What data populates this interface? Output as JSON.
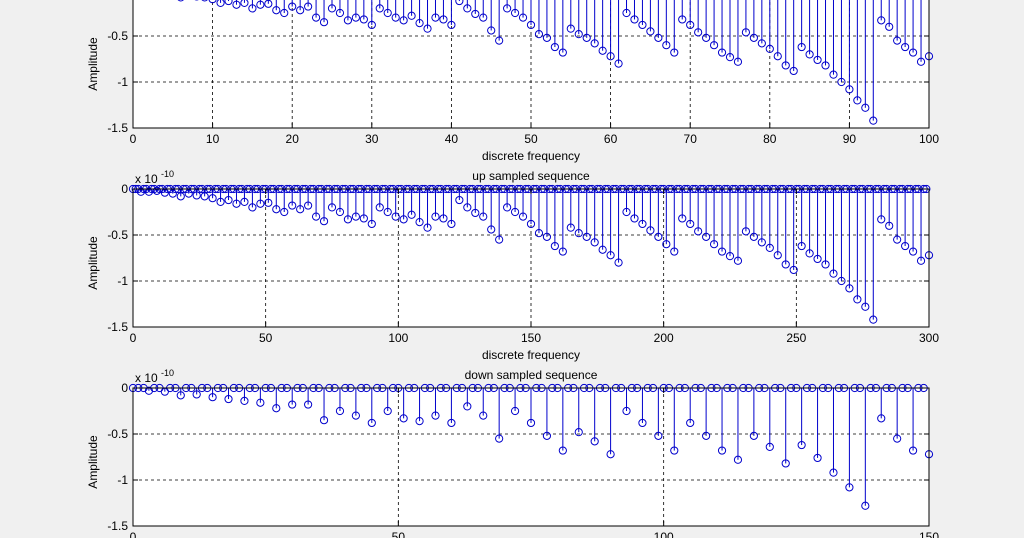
{
  "chart_data": [
    {
      "type": "stem",
      "title": "",
      "xlabel": "discrete frequency",
      "ylabel": "Amplitude",
      "exponent_label": "",
      "xlim": [
        0,
        100
      ],
      "ylim": [
        -1.5,
        0
      ],
      "xticks": [
        0,
        10,
        20,
        30,
        40,
        50,
        60,
        70,
        80,
        90,
        100
      ],
      "yticks": [
        -1.5,
        -1,
        -0.5
      ],
      "ytick_labels": [
        "-1.5",
        "-1",
        "-0.5"
      ],
      "grid": true,
      "marker_color": "#0000cc",
      "x": [
        0,
        1,
        2,
        3,
        4,
        5,
        6,
        7,
        8,
        9,
        10,
        11,
        12,
        13,
        14,
        15,
        16,
        17,
        18,
        19,
        20,
        21,
        22,
        23,
        24,
        25,
        26,
        27,
        28,
        29,
        30,
        31,
        32,
        33,
        34,
        35,
        36,
        37,
        38,
        39,
        40,
        41,
        42,
        43,
        44,
        45,
        46,
        47,
        48,
        49,
        50,
        51,
        52,
        53,
        54,
        55,
        56,
        57,
        58,
        59,
        60,
        61,
        62,
        63,
        64,
        65,
        66,
        67,
        68,
        69,
        70,
        71,
        72,
        73,
        74,
        75,
        76,
        77,
        78,
        79,
        80,
        81,
        82,
        83,
        84,
        85,
        86,
        87,
        88,
        89,
        90,
        91,
        92,
        93,
        94,
        95,
        96,
        97,
        98,
        99,
        100
      ],
      "y": [
        0,
        -0.03,
        -0.03,
        -0.02,
        -0.04,
        -0.05,
        -0.08,
        -0.05,
        -0.07,
        -0.08,
        -0.1,
        -0.14,
        -0.12,
        -0.16,
        -0.14,
        -0.2,
        -0.16,
        -0.15,
        -0.22,
        -0.25,
        -0.18,
        -0.22,
        -0.18,
        -0.3,
        -0.35,
        -0.2,
        -0.25,
        -0.33,
        -0.3,
        -0.32,
        -0.38,
        -0.2,
        -0.25,
        -0.3,
        -0.33,
        -0.28,
        -0.36,
        -0.42,
        -0.3,
        -0.32,
        -0.38,
        -0.12,
        -0.2,
        -0.26,
        -0.3,
        -0.44,
        -0.55,
        -0.2,
        -0.25,
        -0.3,
        -0.38,
        -0.48,
        -0.52,
        -0.62,
        -0.68,
        -0.42,
        -0.48,
        -0.52,
        -0.58,
        -0.66,
        -0.72,
        -0.8,
        -0.25,
        -0.32,
        -0.38,
        -0.45,
        -0.52,
        -0.6,
        -0.68,
        -0.32,
        -0.38,
        -0.46,
        -0.52,
        -0.6,
        -0.68,
        -0.73,
        -0.78,
        -0.46,
        -0.52,
        -0.58,
        -0.64,
        -0.72,
        -0.82,
        -0.88,
        -0.62,
        -0.7,
        -0.76,
        -0.82,
        -0.92,
        -1.0,
        -1.08,
        -1.2,
        -1.28,
        -1.42,
        -0.33,
        -0.4,
        -0.55,
        -0.62,
        -0.68,
        -0.78,
        -0.72
      ]
    },
    {
      "type": "stem",
      "title": "up sampled sequence",
      "xlabel": "discrete frequency",
      "ylabel": "Amplitude",
      "exponent_label": "x 10",
      "exponent_power": "-10",
      "xlim": [
        0,
        300
      ],
      "ylim": [
        -1.5,
        0
      ],
      "xticks": [
        0,
        50,
        100,
        150,
        200,
        250,
        300
      ],
      "yticks": [
        -1.5,
        -1,
        -0.5,
        0
      ],
      "ytick_labels": [
        "-1.5",
        "-1",
        "-0.5",
        "0"
      ],
      "grid": true,
      "marker_color": "#0000cc",
      "x": [],
      "y": []
    },
    {
      "type": "stem",
      "title": "down sampled sequence",
      "xlabel": "",
      "ylabel": "Amplitude",
      "exponent_label": "x 10",
      "exponent_power": "-10",
      "xlim": [
        0,
        150
      ],
      "ylim": [
        -1.5,
        0
      ],
      "xticks": [
        0,
        50,
        100,
        150
      ],
      "yticks": [
        -1.5,
        -1,
        -0.5,
        0
      ],
      "ytick_labels": [
        "-1.5",
        "-1",
        "-0.5",
        "0"
      ],
      "grid": true,
      "marker_color": "#0000cc",
      "x": [],
      "y": []
    }
  ]
}
